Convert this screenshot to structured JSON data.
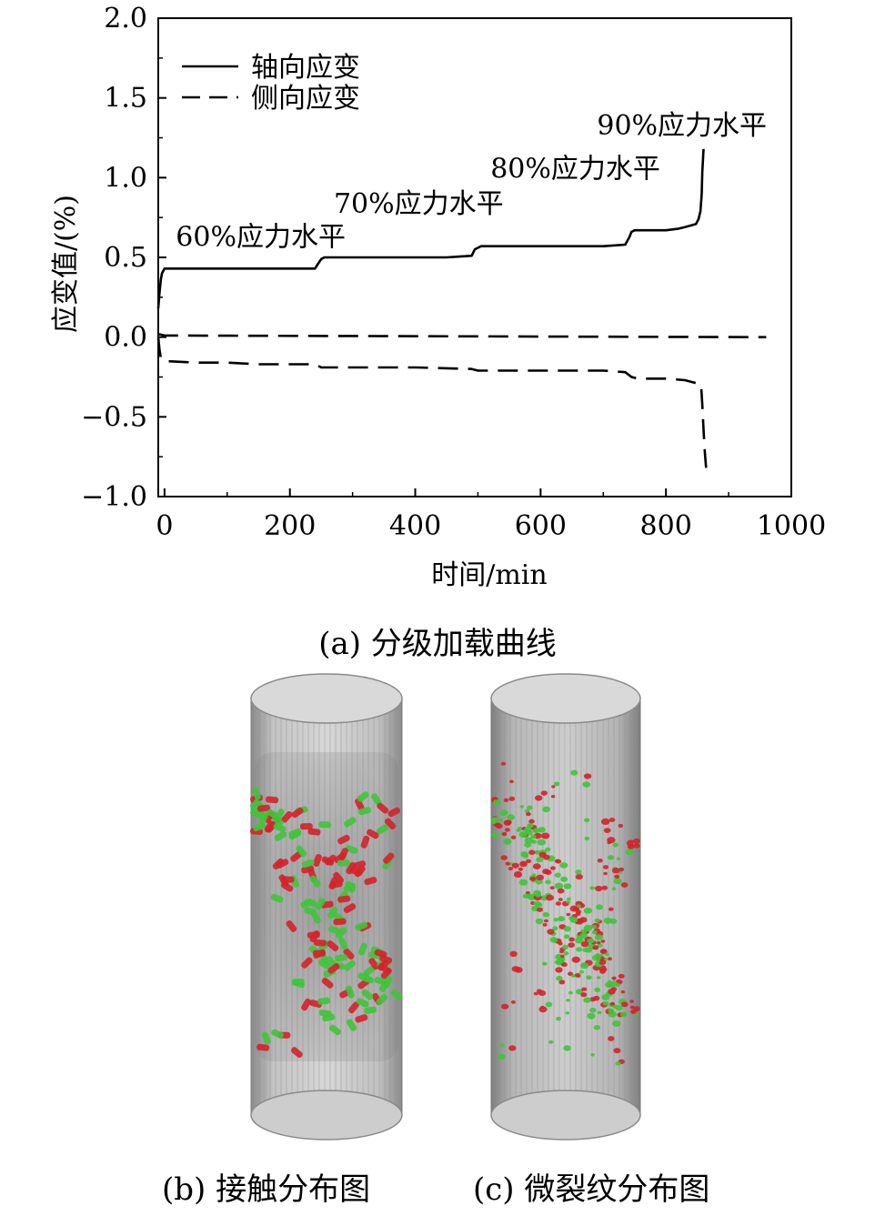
{
  "chart_data": {
    "type": "line",
    "xlabel": "时间/min",
    "ylabel": "应变值/(%)",
    "xlim": [
      -10,
      1000
    ],
    "ylim": [
      -1.0,
      2.0
    ],
    "xticks": [
      "0",
      "200",
      "400",
      "600",
      "800",
      "1000"
    ],
    "xtick_values": [
      0,
      200,
      400,
      600,
      800,
      1000
    ],
    "yticks": [
      "2.0",
      "1.5",
      "1.0",
      "0.5",
      "0.0",
      "−0.5",
      "−1.0"
    ],
    "ytick_values": [
      2.0,
      1.5,
      1.0,
      0.5,
      0.0,
      -0.5,
      -1.0
    ],
    "legend_position": "top-left",
    "series": [
      {
        "name": "轴向应变",
        "style": "solid",
        "x": [
          -10,
          -8,
          -6,
          -4,
          0,
          10,
          50,
          100,
          150,
          200,
          240,
          245,
          250,
          255,
          300,
          350,
          400,
          450,
          490,
          495,
          500,
          505,
          550,
          600,
          650,
          700,
          735,
          742,
          745,
          750,
          760,
          800,
          820,
          830,
          840,
          848,
          852,
          855,
          857,
          858,
          860
        ],
        "values": [
          0.18,
          0.28,
          0.36,
          0.4,
          0.43,
          0.43,
          0.43,
          0.43,
          0.43,
          0.43,
          0.43,
          0.46,
          0.49,
          0.5,
          0.5,
          0.5,
          0.5,
          0.5,
          0.51,
          0.55,
          0.56,
          0.57,
          0.57,
          0.57,
          0.57,
          0.57,
          0.58,
          0.63,
          0.66,
          0.67,
          0.67,
          0.67,
          0.68,
          0.69,
          0.7,
          0.71,
          0.74,
          0.79,
          0.9,
          1.03,
          1.18
        ]
      },
      {
        "name": "侧向应变",
        "style": "dashed",
        "x": [
          -10,
          0,
          960
        ],
        "values": [
          0.02,
          0.01,
          0.0
        ]
      },
      {
        "name": "",
        "style": "dashed",
        "x": [
          -10,
          -8,
          -6,
          0,
          50,
          100,
          150,
          200,
          240,
          250,
          260,
          300,
          400,
          490,
          500,
          550,
          600,
          650,
          700,
          735,
          745,
          755,
          800,
          830,
          840,
          850,
          856,
          858,
          860,
          862,
          864
        ],
        "values": [
          0.0,
          -0.08,
          -0.13,
          -0.15,
          -0.16,
          -0.16,
          -0.17,
          -0.17,
          -0.17,
          -0.19,
          -0.19,
          -0.19,
          -0.19,
          -0.2,
          -0.21,
          -0.21,
          -0.21,
          -0.21,
          -0.21,
          -0.22,
          -0.25,
          -0.26,
          -0.26,
          -0.27,
          -0.28,
          -0.29,
          -0.3,
          -0.42,
          -0.58,
          -0.72,
          -0.82
        ]
      }
    ],
    "annotations": [
      {
        "text": "60%应力水平",
        "x": 18,
        "y": 0.57
      },
      {
        "text": "70%应力水平",
        "x": 270,
        "y": 0.78
      },
      {
        "text": "80%应力水平",
        "x": 520,
        "y": 1.0
      },
      {
        "text": "90%应力水平",
        "x": 690,
        "y": 1.27
      }
    ]
  },
  "captions": {
    "a": "(a)  分级加载曲线",
    "b": "(b)  接触分布图",
    "c": "(c)  微裂纹分布图"
  },
  "colors": {
    "red_particles": "#d4222a",
    "green_particles": "#3fc43a",
    "cylinder_gray": "#9a9a9a"
  }
}
